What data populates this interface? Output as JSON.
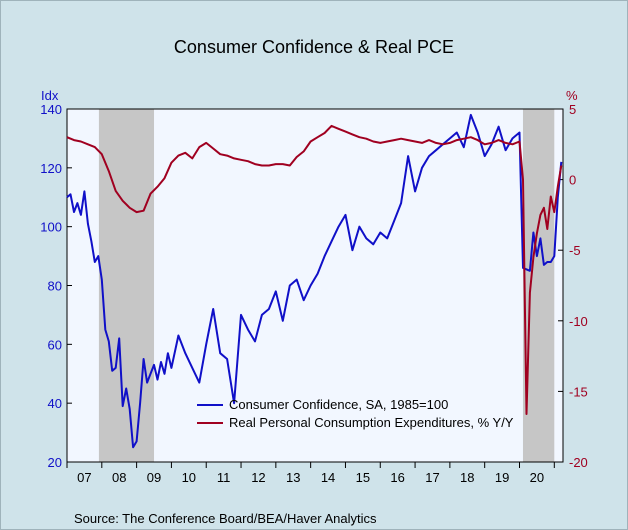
{
  "chart_data": {
    "type": "line",
    "title": "Consumer Confidence & Real PCE",
    "source": "Source: The Conference Board/BEA/Haver Analytics",
    "left_axis": {
      "label": "Idx",
      "min": 20,
      "max": 140,
      "ticks": [
        20,
        40,
        60,
        80,
        100,
        120,
        140
      ],
      "color": "#1010c8"
    },
    "right_axis": {
      "label": "%",
      "min": -20,
      "max": 5,
      "ticks": [
        5,
        0,
        -5,
        -10,
        -15,
        -20
      ],
      "color": "#a00020"
    },
    "x_axis": {
      "min": 2007.0,
      "max": 2021.25,
      "tick_labels": [
        "07",
        "08",
        "09",
        "10",
        "11",
        "12",
        "13",
        "14",
        "15",
        "16",
        "17",
        "18",
        "19",
        "20"
      ]
    },
    "recessions": [
      [
        2007.917,
        2009.5
      ],
      [
        2020.1,
        2021.0
      ]
    ],
    "legend": {
      "placement": "bottom-right"
    },
    "series": [
      {
        "name": "Consumer Confidence, SA, 1985=100",
        "axis": "left",
        "color": "#1010c8",
        "x": [
          2007.0,
          2007.1,
          2007.2,
          2007.3,
          2007.4,
          2007.5,
          2007.6,
          2007.7,
          2007.8,
          2007.9,
          2008.0,
          2008.1,
          2008.2,
          2008.3,
          2008.4,
          2008.5,
          2008.6,
          2008.7,
          2008.8,
          2008.9,
          2009.0,
          2009.1,
          2009.2,
          2009.3,
          2009.4,
          2009.5,
          2009.6,
          2009.7,
          2009.8,
          2009.9,
          2010.0,
          2010.2,
          2010.4,
          2010.6,
          2010.8,
          2011.0,
          2011.2,
          2011.4,
          2011.6,
          2011.8,
          2012.0,
          2012.2,
          2012.4,
          2012.6,
          2012.8,
          2013.0,
          2013.2,
          2013.4,
          2013.6,
          2013.8,
          2014.0,
          2014.2,
          2014.4,
          2014.6,
          2014.8,
          2015.0,
          2015.2,
          2015.4,
          2015.6,
          2015.8,
          2016.0,
          2016.2,
          2016.4,
          2016.6,
          2016.8,
          2017.0,
          2017.2,
          2017.4,
          2017.6,
          2017.8,
          2018.0,
          2018.2,
          2018.4,
          2018.6,
          2018.8,
          2019.0,
          2019.2,
          2019.4,
          2019.6,
          2019.8,
          2020.0,
          2020.1,
          2020.3,
          2020.4,
          2020.5,
          2020.6,
          2020.7,
          2020.8,
          2020.9,
          2021.0,
          2021.1,
          2021.2
        ],
        "values": [
          110,
          111,
          105,
          108,
          104,
          112,
          101,
          95,
          88,
          90,
          82,
          65,
          61,
          51,
          52,
          62,
          39,
          45,
          38,
          25,
          27,
          40,
          55,
          47,
          50,
          53,
          48,
          54,
          50,
          57,
          52,
          63,
          57,
          52,
          47,
          60,
          72,
          57,
          55,
          40,
          70,
          65,
          61,
          70,
          72,
          78,
          68,
          80,
          82,
          75,
          80,
          84,
          90,
          95,
          100,
          104,
          92,
          100,
          96,
          94,
          98,
          96,
          102,
          108,
          124,
          112,
          120,
          124,
          126,
          128,
          130,
          132,
          127,
          138,
          132,
          124,
          128,
          134,
          126,
          130,
          132,
          86,
          85,
          98,
          90,
          96,
          87,
          88,
          88,
          90,
          110,
          122
        ]
      },
      {
        "name": "Real Personal Consumption Expenditures, % Y/Y",
        "axis": "right",
        "color": "#a00020",
        "x": [
          2007.0,
          2007.2,
          2007.4,
          2007.6,
          2007.8,
          2008.0,
          2008.2,
          2008.4,
          2008.6,
          2008.8,
          2009.0,
          2009.2,
          2009.4,
          2009.6,
          2009.8,
          2010.0,
          2010.2,
          2010.4,
          2010.6,
          2010.8,
          2011.0,
          2011.2,
          2011.4,
          2011.6,
          2011.8,
          2012.0,
          2012.2,
          2012.4,
          2012.6,
          2012.8,
          2013.0,
          2013.2,
          2013.4,
          2013.6,
          2013.8,
          2014.0,
          2014.2,
          2014.4,
          2014.6,
          2014.8,
          2015.0,
          2015.2,
          2015.4,
          2015.6,
          2015.8,
          2016.0,
          2016.2,
          2016.4,
          2016.6,
          2016.8,
          2017.0,
          2017.2,
          2017.4,
          2017.6,
          2017.8,
          2018.0,
          2018.2,
          2018.4,
          2018.6,
          2018.8,
          2019.0,
          2019.2,
          2019.4,
          2019.6,
          2019.8,
          2020.0,
          2020.1,
          2020.2,
          2020.3,
          2020.4,
          2020.5,
          2020.6,
          2020.7,
          2020.8,
          2020.9,
          2021.0,
          2021.1,
          2021.2
        ],
        "values": [
          3.0,
          2.8,
          2.7,
          2.5,
          2.3,
          1.8,
          0.6,
          -0.8,
          -1.5,
          -2.0,
          -2.3,
          -2.2,
          -1.0,
          -0.5,
          0.1,
          1.2,
          1.7,
          1.9,
          1.5,
          2.3,
          2.6,
          2.2,
          1.8,
          1.7,
          1.5,
          1.4,
          1.3,
          1.1,
          1.0,
          1.0,
          1.1,
          1.1,
          1.0,
          1.6,
          2.0,
          2.7,
          3.0,
          3.3,
          3.8,
          3.6,
          3.4,
          3.2,
          3.0,
          2.9,
          2.7,
          2.6,
          2.7,
          2.8,
          2.9,
          2.8,
          2.7,
          2.6,
          2.8,
          2.6,
          2.5,
          2.6,
          2.8,
          2.9,
          3.0,
          2.8,
          2.5,
          2.6,
          2.8,
          2.6,
          2.5,
          2.7,
          0.0,
          -16.6,
          -8.0,
          -5.5,
          -3.8,
          -2.5,
          -2.0,
          -3.5,
          -1.2,
          -2.3,
          -0.5,
          1.0
        ]
      }
    ]
  }
}
